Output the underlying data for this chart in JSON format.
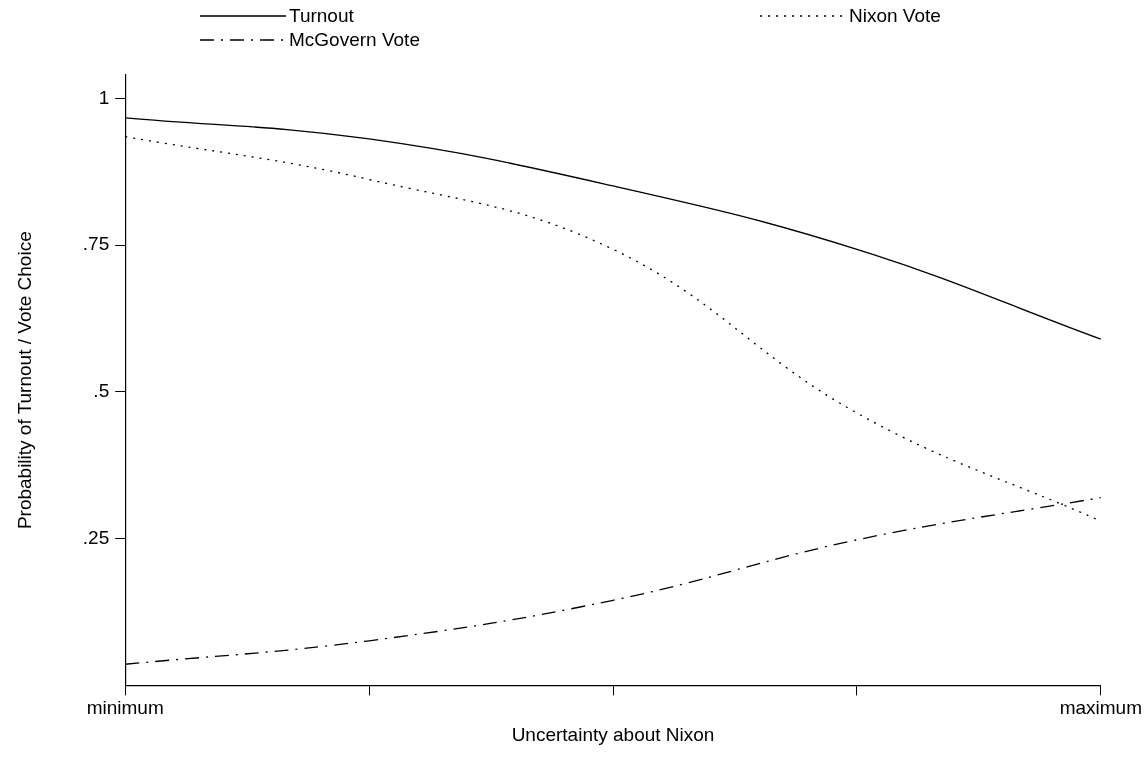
{
  "chart_data": {
    "type": "line",
    "xlabel": "Uncertainty about Nixon",
    "ylabel": "Probability of Turnout / Vote Choice",
    "categories": [
      "minimum",
      null,
      null,
      null,
      "maximum"
    ],
    "ylim": [
      0,
      1.04
    ],
    "yticks": [
      {
        "value": 0.25,
        "label": ".25"
      },
      {
        "value": 0.5,
        "label": ".5"
      },
      {
        "value": 0.75,
        "label": ".75"
      },
      {
        "value": 1,
        "label": "1"
      }
    ],
    "series": [
      {
        "name": "Turnout",
        "color": "#000000",
        "line_style": "solid",
        "values": [
          0.967,
          0.931,
          0.851,
          0.743,
          0.59
        ]
      },
      {
        "name": "McGovern Vote",
        "color": "#000000",
        "line_style": "dashed",
        "values": [
          0.036,
          0.076,
          0.145,
          0.248,
          0.32
        ]
      },
      {
        "name": "Nixon Vote",
        "color": "#000000",
        "line_style": "dotted",
        "values": [
          0.935,
          0.862,
          0.743,
          0.464,
          0.28
        ]
      }
    ],
    "legend": "top",
    "grid": false,
    "marker": "none"
  }
}
